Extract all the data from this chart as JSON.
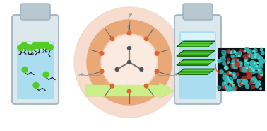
{
  "bottle_facecolor": "#dde8ec",
  "bottle_edgecolor": "#9ab0bc",
  "cap_facecolor": "#b8c8d0",
  "cap_edgecolor": "#9ab0bc",
  "liquid_light": "#cceef8",
  "liquid_mid": "#aaddf0",
  "liquid_top_tint": "#d8f4f8",
  "green_head": "#55cc22",
  "stick_color": "#222222",
  "circle_outer_bg": "#f5d8c8",
  "circle_ring_outer": "#e8a878",
  "circle_ring_inner": "#f5d8c8",
  "circle_center_bg": "#faeae0",
  "dot_orange": "#dd6633",
  "mol_line": "#888888",
  "arrow_fill": "#ccee88",
  "arrow_edge": "#99bb44",
  "disk_face": "#33aa22",
  "disk_edge": "#115500",
  "disk_stripe": "#66dd44",
  "plm_bg": "#051218",
  "plm_teal1": "#33bbbb",
  "plm_teal2": "#55ddcc",
  "plm_red": "#bb3322",
  "conn_line": "#cc7755",
  "trimeric_line": "#777777",
  "trimeric_dot": "#555555",
  "chain_line": "#999999"
}
